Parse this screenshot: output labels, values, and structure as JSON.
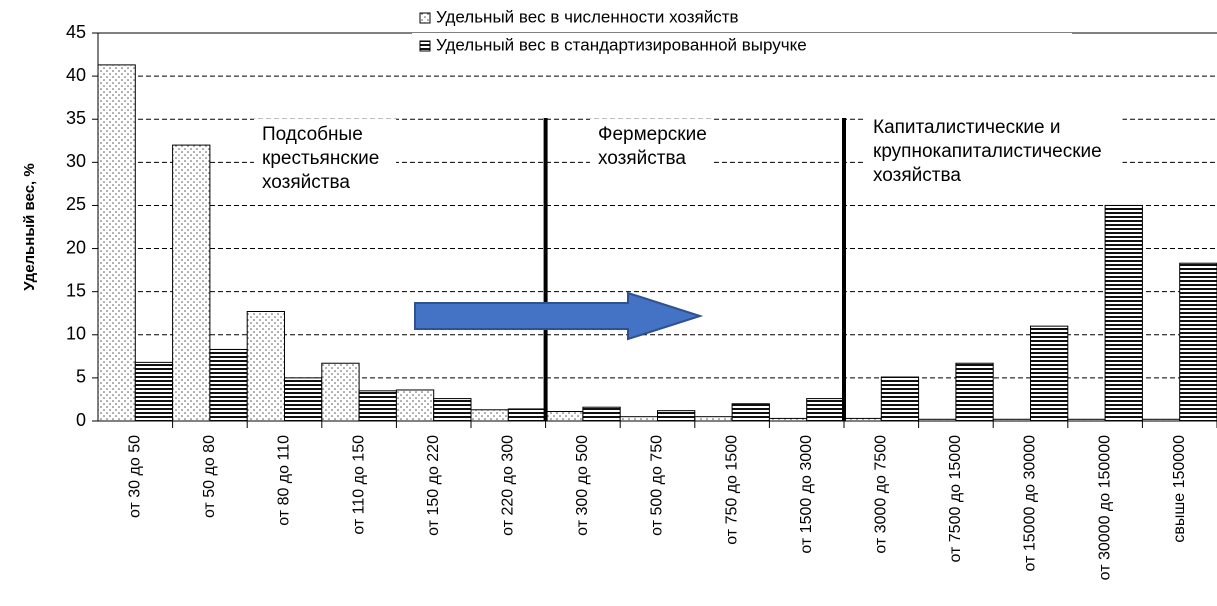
{
  "chart_data": {
    "type": "bar",
    "y_label": "Удельный вес, %",
    "categories": [
      "от 30 до 50",
      "от 50 до 80",
      "от 80 до 110",
      "от 110 до 150",
      "от 150 до 220",
      "от 220 до 300",
      "от 300 до 500",
      "от 500 до 750",
      "от 750 до 1500",
      "от 1500 до 3000",
      "от 3000 до 7500",
      "от 7500 до 15000",
      "от 15000 до 30000",
      "от 30000 до 150000",
      "свыше 150000"
    ],
    "series": [
      {
        "name": "Удельный вес в численности хозяйств",
        "color": "#ffffff",
        "pattern": "dots",
        "values": [
          41.3,
          32,
          12.7,
          6.7,
          3.6,
          1.3,
          1.1,
          0.5,
          0.5,
          0.3,
          0.3,
          0.2,
          0.2,
          0.2,
          0.2
        ]
      },
      {
        "name": "Удельный вес в стандартизированной выручке",
        "color": "#ffffff",
        "pattern": "hlines",
        "values": [
          6.8,
          8.3,
          5,
          3.5,
          2.6,
          1.4,
          1.6,
          1.2,
          2,
          2.6,
          5.1,
          6.7,
          11,
          25,
          18.3
        ]
      }
    ],
    "annotations": [
      [
        "Подсобные",
        "крестьянские",
        "хозяйства"
      ],
      [
        "Фермерские",
        "хозяйства"
      ],
      [
        "Капиталистические и",
        "крупнокапиталистические",
        "хозяйства"
      ]
    ],
    "ylim": [
      0,
      45
    ],
    "yticks": [
      0,
      5,
      10,
      15,
      20,
      25,
      30,
      35,
      40,
      45
    ],
    "grid": true
  }
}
